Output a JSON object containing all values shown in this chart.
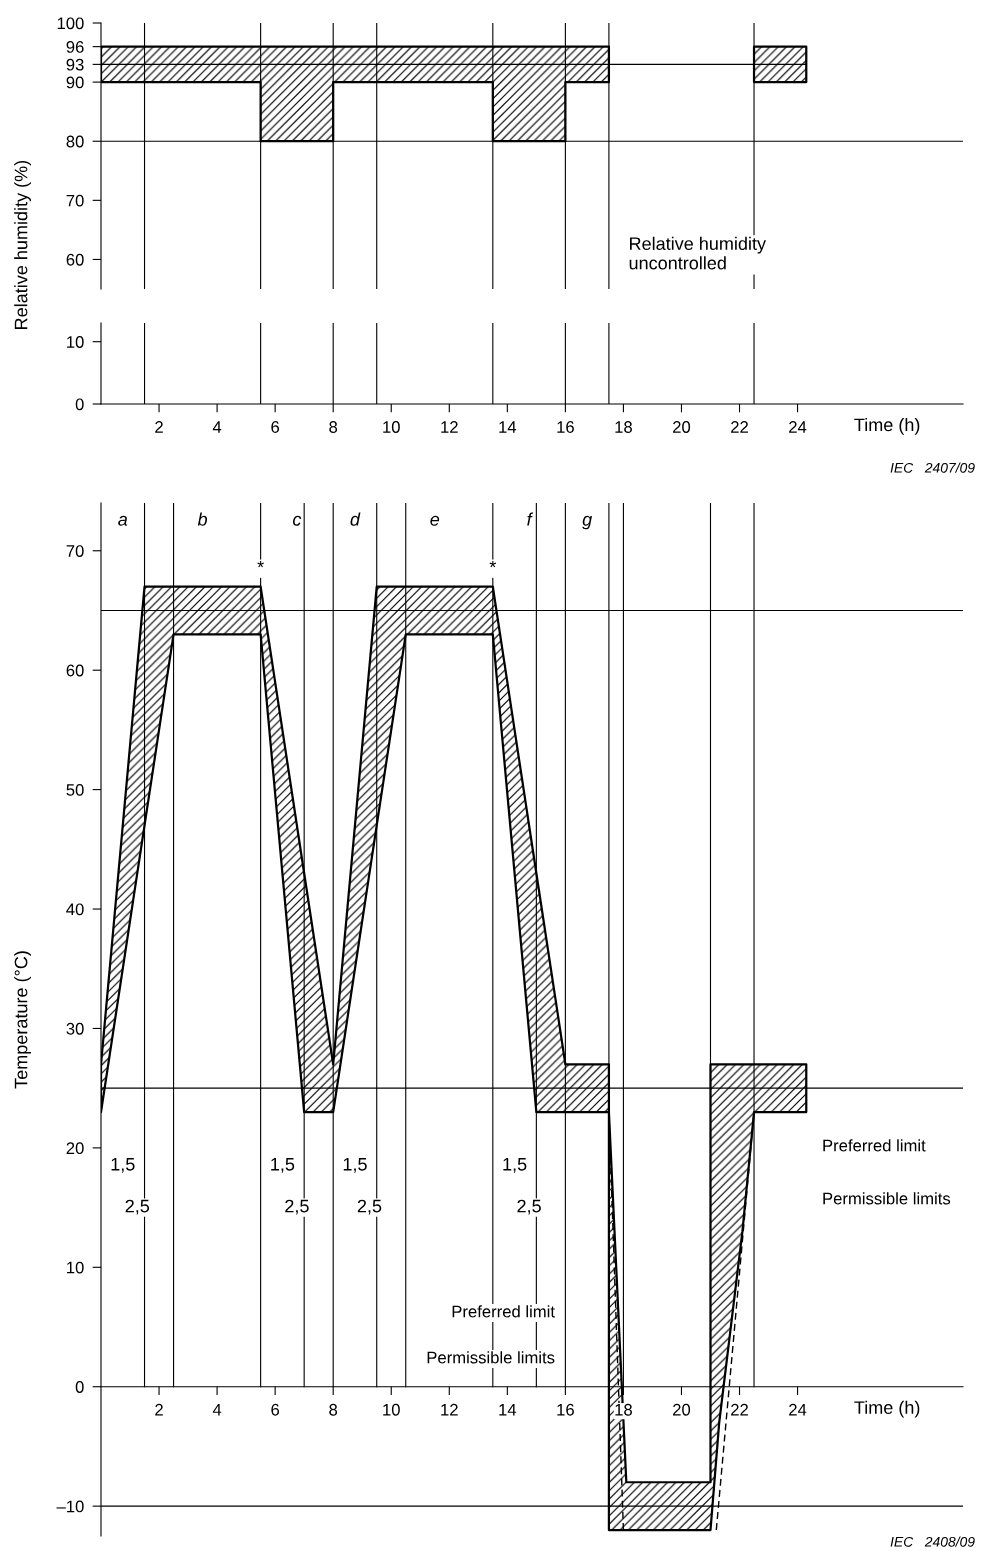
{
  "chart_data": [
    {
      "type": "line",
      "ylabel": "Relative humidity (%)",
      "xlim": [
        0,
        29.7
      ],
      "ylim": [
        55,
        100
      ],
      "yticks": [
        60,
        70,
        80,
        90,
        93,
        96,
        100
      ],
      "tick_labels": "y",
      "series": [
        {
          "color": "#000000",
          "x": [
            0,
            5.5,
            5.5,
            8,
            8,
            13.5,
            13.5,
            16,
            16,
            17.5,
            17.5,
            22.5,
            22.5,
            24.3
          ],
          "values": [
            93,
            93,
            93,
            93,
            93,
            93,
            93,
            93,
            93,
            93,
            93,
            93,
            93,
            93
          ],
          "lower": [
            90,
            90,
            80,
            80,
            90,
            90,
            80,
            80,
            90,
            90,
            null,
            null,
            90,
            90
          ],
          "upper": [
            96,
            96,
            96,
            96,
            96,
            96,
            96,
            96,
            96,
            96,
            null,
            null,
            96,
            96
          ]
        }
      ],
      "ref_lines": [
        {
          "axis": "y",
          "value": 80
        },
        {
          "axis": "x",
          "value": 1.5
        },
        {
          "axis": "x",
          "value": 5.5
        },
        {
          "axis": "x",
          "value": 8
        },
        {
          "axis": "x",
          "value": 9.5
        },
        {
          "axis": "x",
          "value": 13.5
        },
        {
          "axis": "x",
          "value": 16
        },
        {
          "axis": "x",
          "value": 17.5
        },
        {
          "axis": "x",
          "value": 22.5
        }
      ],
      "annotations": [
        "Relative humidity\nuncontrolled"
      ]
    },
    {
      "type": "line",
      "xlabel": "Time (h)",
      "xlim": [
        0,
        29.7
      ],
      "ylim": [
        0,
        13
      ],
      "xticks": [
        2,
        4,
        6,
        8,
        10,
        12,
        14,
        16,
        18,
        20,
        22,
        24
      ],
      "yticks": [
        0,
        10
      ],
      "ref_lines": [
        {
          "axis": "x",
          "value": 1.5
        },
        {
          "axis": "x",
          "value": 5.5
        },
        {
          "axis": "x",
          "value": 8
        },
        {
          "axis": "x",
          "value": 9.5
        },
        {
          "axis": "x",
          "value": 13.5
        },
        {
          "axis": "x",
          "value": 16
        },
        {
          "axis": "x",
          "value": 17.5
        },
        {
          "axis": "x",
          "value": 22.5
        }
      ],
      "annotations": [
        "IEC   2407/09"
      ]
    },
    {
      "type": "line",
      "xlabel": "Time (h)",
      "ylabel": "Temperature (°C)",
      "xlim": [
        0,
        29.7
      ],
      "ylim": [
        -12.5,
        74
      ],
      "xticks": [
        2,
        4,
        6,
        8,
        10,
        12,
        14,
        16,
        18,
        20,
        22,
        24
      ],
      "yticks": [
        {
          "value": -10,
          "label": "–10"
        },
        0,
        10,
        20,
        30,
        40,
        50,
        60,
        70
      ],
      "series": [
        {
          "color": "#000000",
          "x": [
            0,
            1.5,
            2.5,
            5.5,
            7,
            8,
            9.5,
            10.5,
            13.5,
            15,
            16,
            17.5,
            17.5,
            18.1,
            21,
            21,
            21.3,
            21.7,
            22.1,
            22.5,
            24.3
          ],
          "values": [
            null,
            null,
            null,
            null,
            null,
            null,
            null,
            null,
            null,
            null,
            null,
            null,
            null,
            null,
            null,
            null,
            null,
            null,
            null,
            null,
            null
          ],
          "upper": [
            27,
            67,
            67,
            67,
            43,
            27,
            67,
            67,
            67,
            43,
            27,
            27,
            23,
            -8,
            -8,
            27,
            27,
            27,
            27,
            27,
            27
          ],
          "lower": [
            23,
            47,
            63,
            63,
            23,
            23,
            47,
            63,
            63,
            23,
            23,
            23,
            -12,
            -12,
            -12,
            -12,
            -3,
            5,
            13,
            23,
            23
          ]
        },
        {
          "color": "#000000",
          "type": "line",
          "line_style": "dashed",
          "x": [
            17.5,
            18,
            19,
            21.2,
            22.5
          ],
          "values": [
            23,
            -12,
            null,
            -12,
            23
          ]
        }
      ],
      "ref_lines": [
        {
          "axis": "y",
          "value": 65
        },
        {
          "axis": "y",
          "value": 25
        },
        {
          "axis": "y",
          "value": -10
        },
        {
          "axis": "x",
          "value": 1.5
        },
        {
          "axis": "x",
          "value": 2.5
        },
        {
          "axis": "x",
          "value": 5.5
        },
        {
          "axis": "x",
          "value": 7
        },
        {
          "axis": "x",
          "value": 8
        },
        {
          "axis": "x",
          "value": 9.5
        },
        {
          "axis": "x",
          "value": 10.5
        },
        {
          "axis": "x",
          "value": 13.5
        },
        {
          "axis": "x",
          "value": 15
        },
        {
          "axis": "x",
          "value": 16
        },
        {
          "axis": "x",
          "value": 17.5
        },
        {
          "axis": "x",
          "value": 18
        },
        {
          "axis": "x",
          "value": 21
        },
        {
          "axis": "x",
          "value": 22.5
        }
      ],
      "annotations": [
        {
          "text": "a",
          "x": 0.75,
          "y": 72.5
        },
        {
          "text": "b",
          "x": 3.5,
          "y": 72.5
        },
        {
          "text": "c",
          "x": 6.75,
          "y": 72.5
        },
        {
          "text": "d",
          "x": 8.75,
          "y": 72.5
        },
        {
          "text": "e",
          "x": 11.5,
          "y": 72.5
        },
        {
          "text": "f",
          "x": 14.75,
          "y": 72.5
        },
        {
          "text": "g",
          "x": 16.75,
          "y": 72.5
        },
        {
          "text": "*",
          "x": 5.5,
          "y": 68.5
        },
        {
          "text": "*",
          "x": 13.5,
          "y": 68.5
        },
        {
          "text": "1,5",
          "x": 0.75,
          "y": 18.5
        },
        {
          "text": "2,5",
          "x": 1.25,
          "y": 15
        },
        {
          "text": "1,5",
          "x": 6.25,
          "y": 18.5
        },
        {
          "text": "2,5",
          "x": 6.75,
          "y": 15
        },
        {
          "text": "1,5",
          "x": 8.75,
          "y": 18.5
        },
        {
          "text": "2,5",
          "x": 9.25,
          "y": 15
        },
        {
          "text": "1,5",
          "x": 14.25,
          "y": 18.5
        },
        {
          "text": "2,5",
          "x": 14.75,
          "y": 15
        },
        "Preferred limit",
        "Permissible limits",
        "Preferred limit",
        "Permissible limits",
        "IEC   2408/09"
      ]
    }
  ]
}
